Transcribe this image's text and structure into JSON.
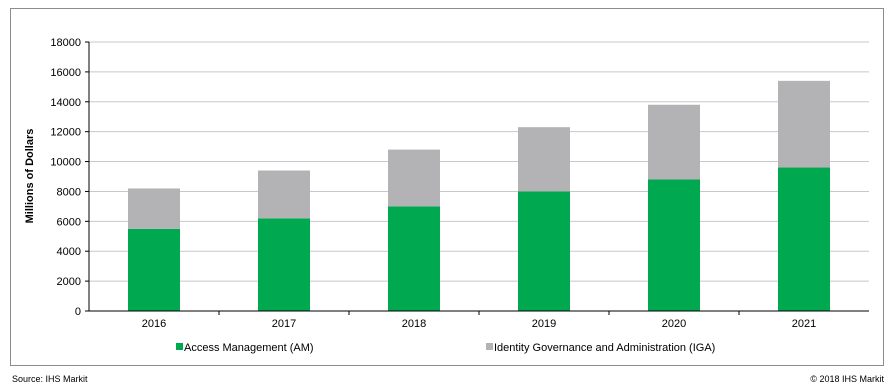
{
  "chart_data": {
    "type": "bar",
    "stacked": true,
    "categories": [
      "2016",
      "2017",
      "2018",
      "2019",
      "2020",
      "2021"
    ],
    "series": [
      {
        "name": "Access Management (AM)",
        "color": "#00a84f",
        "values": [
          5500,
          6200,
          7000,
          8000,
          8800,
          9600
        ]
      },
      {
        "name": "Identity Governance and Administration (IGA)",
        "color": "#b3b3b6",
        "values": [
          2700,
          3200,
          3800,
          4300,
          5000,
          5800
        ]
      }
    ],
    "xlabel": "",
    "ylabel": "Millions of Dollars",
    "ylim": [
      0,
      18000
    ],
    "yticks": [
      0,
      2000,
      4000,
      6000,
      8000,
      10000,
      12000,
      14000,
      16000,
      18000
    ],
    "grid": true,
    "legend": "bottom"
  },
  "footer": {
    "source": "Source: IHS Markit",
    "copyright": "© 2018 IHS Markit"
  }
}
